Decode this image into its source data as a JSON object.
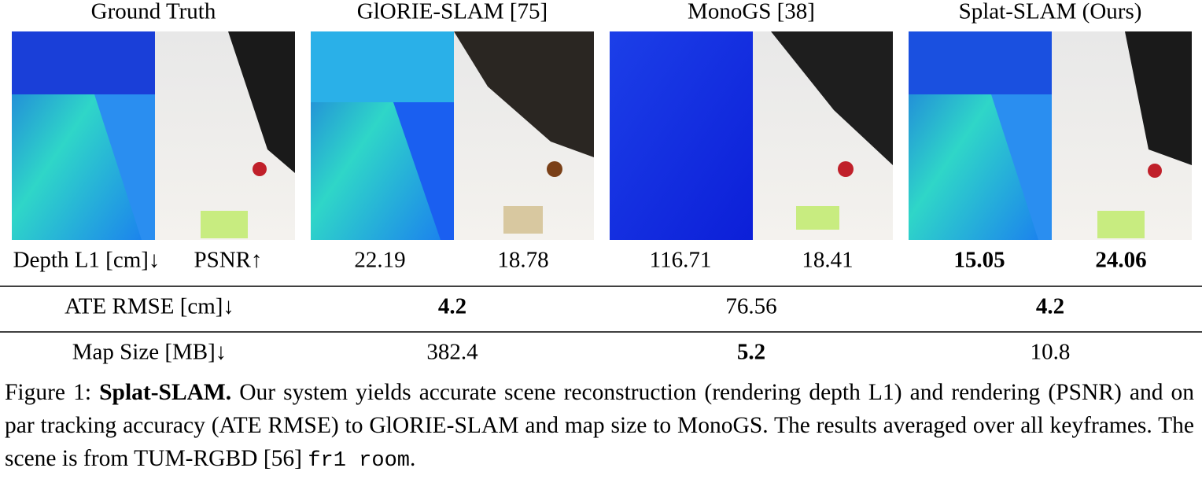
{
  "figure": {
    "columns": [
      "Ground Truth",
      "GlORIE-SLAM [75]",
      "MonoGS [38]",
      "Splat-SLAM (Ours)"
    ],
    "rows": [
      {
        "labels": [
          "Depth L1 [cm]↓",
          "PSNR↑"
        ],
        "cells": [
          {
            "value": 22.19,
            "bold": false
          },
          {
            "value": 18.78,
            "bold": false
          },
          {
            "value": 116.71,
            "bold": false
          },
          {
            "value": 18.41,
            "bold": false
          },
          {
            "value": 15.05,
            "bold": true
          },
          {
            "value": 24.06,
            "bold": true
          }
        ]
      },
      {
        "labels": [
          "ATE RMSE [cm]↓"
        ],
        "cells": [
          {
            "value": 4.2,
            "bold": true
          },
          {
            "value": 76.56,
            "bold": false
          },
          {
            "value": 4.2,
            "bold": true
          }
        ]
      },
      {
        "labels": [
          "Map Size [MB]↓"
        ],
        "cells": [
          {
            "value": 382.4,
            "bold": false
          },
          {
            "value": 5.2,
            "bold": true
          },
          {
            "value": 10.8,
            "bold": false
          }
        ]
      }
    ],
    "caption": {
      "label": "Figure 1:",
      "title": "Splat-SLAM.",
      "text": "Our system yields accurate scene reconstruction (rendering depth L1) and rendering (PSNR) and on par tracking accuracy (ATE RMSE) to GlORIE-SLAM and map size to MonoGS. The results averaged over all keyframes. The scene is from TUM-RGBD [56]",
      "code": "fr1 room",
      "end": "."
    }
  }
}
